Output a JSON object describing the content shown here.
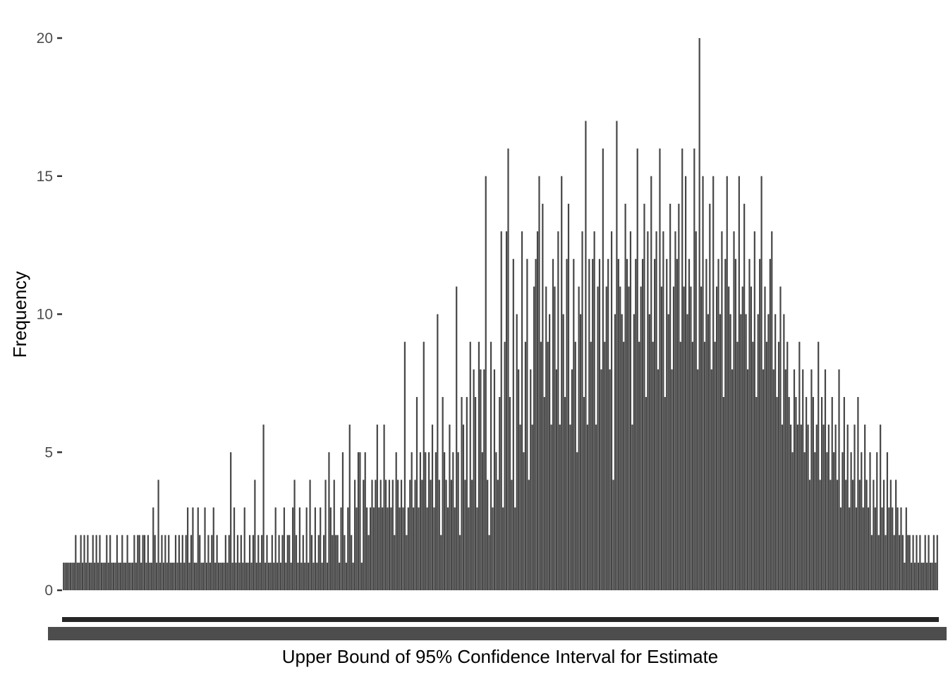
{
  "chart_data": {
    "type": "bar",
    "title": "",
    "xlabel": "Upper Bound of 95% Confidence Interval for Estimate",
    "ylabel": "Frequency",
    "ylim": [
      0,
      20.8
    ],
    "yticks": [
      0,
      5,
      10,
      15,
      20
    ],
    "grid": false,
    "legend": "none",
    "x_tick_labels_note": "x tick labels are densely overlapping and unreadable",
    "bar_color": "#464646",
    "axis_tick_color": "#333333",
    "tick_label_color": "#4d4d4d",
    "values": [
      1,
      1,
      1,
      1,
      1,
      1,
      1,
      2,
      1,
      1,
      2,
      1,
      2,
      1,
      2,
      1,
      1,
      2,
      1,
      2,
      1,
      2,
      1,
      1,
      1,
      2,
      1,
      2,
      1,
      1,
      1,
      2,
      1,
      1,
      2,
      1,
      1,
      2,
      1,
      1,
      1,
      2,
      1,
      2,
      2,
      1,
      2,
      2,
      1,
      2,
      1,
      1,
      3,
      2,
      1,
      4,
      1,
      2,
      1,
      2,
      1,
      2,
      1,
      1,
      1,
      2,
      1,
      2,
      1,
      2,
      1,
      2,
      3,
      1,
      2,
      3,
      1,
      1,
      3,
      2,
      1,
      1,
      3,
      1,
      2,
      1,
      2,
      3,
      1,
      2,
      1,
      1,
      1,
      1,
      2,
      1,
      2,
      5,
      1,
      3,
      1,
      2,
      1,
      2,
      1,
      3,
      1,
      1,
      2,
      1,
      2,
      4,
      1,
      2,
      1,
      2,
      6,
      1,
      2,
      1,
      1,
      2,
      1,
      3,
      1,
      2,
      1,
      2,
      3,
      1,
      2,
      2,
      1,
      3,
      4,
      2,
      1,
      3,
      1,
      2,
      1,
      3,
      1,
      4,
      2,
      1,
      3,
      1,
      2,
      3,
      1,
      2,
      4,
      1,
      5,
      3,
      2,
      4,
      2,
      2,
      1,
      3,
      5,
      2,
      1,
      3,
      6,
      2,
      1,
      4,
      3,
      5,
      5,
      1,
      4,
      5,
      3,
      2,
      3,
      4,
      3,
      4,
      6,
      3,
      4,
      3,
      6,
      4,
      3,
      4,
      3,
      4,
      2,
      5,
      4,
      3,
      4,
      3,
      9,
      2,
      3,
      4,
      5,
      3,
      4,
      7,
      3,
      5,
      4,
      9,
      5,
      3,
      5,
      4,
      6,
      3,
      5,
      10,
      4,
      2,
      7,
      5,
      4,
      3,
      6,
      4,
      5,
      3,
      11,
      5,
      2,
      7,
      6,
      4,
      7,
      3,
      9,
      4,
      8,
      7,
      3,
      9,
      8,
      5,
      8,
      15,
      4,
      2,
      9,
      3,
      8,
      5,
      4,
      7,
      13,
      3,
      9,
      13,
      16,
      7,
      4,
      12,
      3,
      10,
      8,
      6,
      13,
      5,
      9,
      12,
      4,
      8,
      6,
      11,
      12,
      13,
      15,
      9,
      14,
      7,
      11,
      9,
      10,
      6,
      12,
      11,
      8,
      13,
      6,
      15,
      10,
      7,
      12,
      14,
      6,
      8,
      12,
      9,
      5,
      11,
      10,
      13,
      7,
      17,
      6,
      12,
      9,
      12,
      13,
      6,
      11,
      12,
      8,
      16,
      9,
      11,
      12,
      8,
      13,
      4,
      10,
      17,
      12,
      11,
      10,
      9,
      14,
      12,
      11,
      13,
      6,
      10,
      12,
      16,
      9,
      11,
      12,
      14,
      7,
      13,
      10,
      15,
      9,
      12,
      13,
      8,
      16,
      11,
      13,
      7,
      12,
      10,
      14,
      8,
      11,
      13,
      12,
      14,
      9,
      16,
      11,
      15,
      10,
      12,
      11,
      9,
      16,
      13,
      8,
      20,
      11,
      15,
      9,
      12,
      10,
      14,
      8,
      15,
      9,
      11,
      12,
      10,
      13,
      7,
      12,
      15,
      11,
      10,
      8,
      13,
      12,
      9,
      15,
      10,
      11,
      14,
      10,
      8,
      12,
      11,
      9,
      13,
      7,
      10,
      12,
      15,
      8,
      11,
      9,
      10,
      12,
      13,
      8,
      10,
      7,
      9,
      11,
      6,
      10,
      8,
      9,
      7,
      6,
      5,
      8,
      7,
      6,
      9,
      6,
      8,
      5,
      7,
      6,
      4,
      8,
      7,
      5,
      6,
      9,
      4,
      7,
      6,
      8,
      5,
      6,
      4,
      7,
      5,
      6,
      4,
      8,
      3,
      5,
      7,
      4,
      6,
      3,
      5,
      4,
      6,
      3,
      7,
      4,
      5,
      3,
      6,
      4,
      3,
      5,
      2,
      4,
      3,
      5,
      2,
      6,
      3,
      4,
      2,
      5,
      3,
      4,
      3,
      2,
      4,
      3,
      2,
      3,
      2,
      1,
      3,
      2,
      2,
      1,
      2,
      1,
      2,
      1,
      2,
      1,
      1,
      2,
      1,
      2,
      1,
      1,
      2,
      1,
      2
    ]
  }
}
